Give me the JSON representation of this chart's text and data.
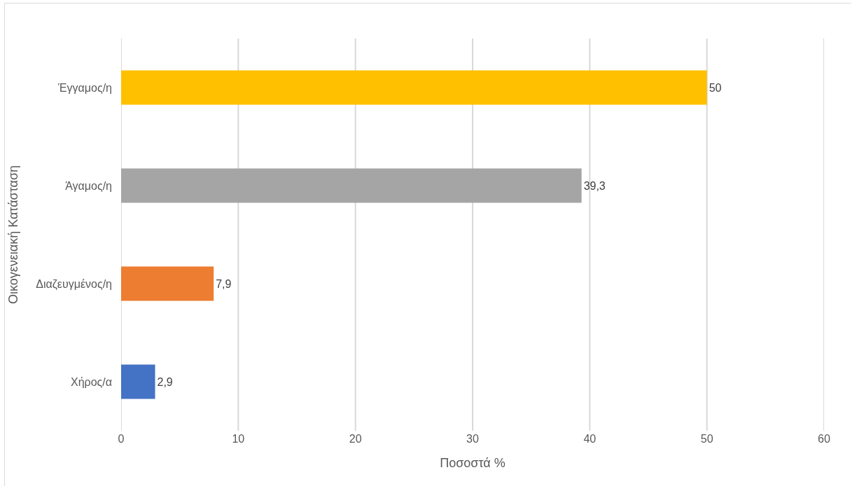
{
  "chart_data": {
    "type": "bar",
    "orientation": "horizontal",
    "xlabel": "Ποσοστά %",
    "ylabel": "Οικογενειακή Κατάσταση",
    "categories": [
      "Έγγαμος/η",
      "Άγαμος/η",
      "Διαζευγμένος/η",
      "Χήρος/α"
    ],
    "values": [
      50,
      39.3,
      7.9,
      2.9
    ],
    "value_labels": [
      "50",
      "39,3",
      "7,9",
      "2,9"
    ],
    "colors": [
      "#ffc000",
      "#a5a5a5",
      "#ed7d31",
      "#4472c4"
    ],
    "xlim": [
      0,
      60
    ],
    "xticks": [
      0,
      10,
      20,
      30,
      40,
      50,
      60
    ],
    "grid": "x"
  }
}
